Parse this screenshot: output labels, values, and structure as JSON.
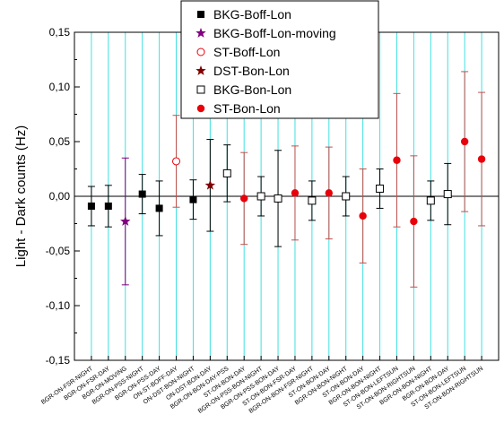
{
  "chart_data": {
    "type": "scatter",
    "title": "",
    "xlabel": "",
    "ylabel": "Light - Dark counts (Hz)",
    "ylim": [
      -0.15,
      0.15
    ],
    "yticks": [
      "-0,15",
      "-0,10",
      "-0,05",
      "0,00",
      "0,05",
      "0,10",
      "0,15"
    ],
    "ytick_values": [
      -0.15,
      -0.1,
      -0.05,
      0.0,
      0.05,
      0.1,
      0.15
    ],
    "grid": "vertical lines at each category (cyan)",
    "reference_line": 0.0,
    "legend_position": "top-center",
    "categories": [
      "BGR-ON-FSR-NIGHT",
      "BGR-ON-FSR-DAY",
      "BGR-ON-MOVING",
      "BGR-ON-PSS-NIGHT",
      "BGR-ON-PSS-DAY",
      "ON-ST-BOFF-DAY",
      "ON-DST-BON-NIGHT",
      "ON-DST-BON-DAY",
      "BGR-ON-BON-DAY-PSS",
      "ST-ON-BON-DAY",
      "BGR-ON-PSS-BON-NIGHT",
      "BGR-ON-PSS-BON-DAY",
      "ST-ON-BON-FSR-DAY",
      "BGR-ON-BON-FSR-NIGHT",
      "ST-ON-BON-DAY",
      "BGR-ON-BON-NIGHT",
      "ST-ON-BON-DAY",
      "BGR-ON-BON-NIGHT",
      "ST-ON-BON-LEFTSUN",
      "ST-ON-BON-RIGHTSUN",
      "BGR-ON-BON-NIGHT",
      "BGR-ON-BON-DAY",
      "ST-ON-BON-LEFTSUN",
      "ST-ON-BON-RIGHTSUN"
    ],
    "series": [
      {
        "name": "BKG-Boff-Lon",
        "marker": "filled-square",
        "color": "#000000",
        "err_color": "#000000",
        "points": [
          {
            "x": 0,
            "y": -0.009,
            "err": 0.018
          },
          {
            "x": 1,
            "y": -0.009,
            "err": 0.019
          },
          {
            "x": 3,
            "y": 0.002,
            "err": 0.018
          },
          {
            "x": 4,
            "y": -0.011,
            "err": 0.025
          },
          {
            "x": 6,
            "y": -0.003,
            "err": 0.018
          }
        ]
      },
      {
        "name": "BKG-Boff-Lon-moving",
        "marker": "filled-star",
        "color": "#800080",
        "err_color": "#800080",
        "points": [
          {
            "x": 2,
            "y": -0.023,
            "err": 0.058
          }
        ]
      },
      {
        "name": "ST-Boff-Lon",
        "marker": "open-circle",
        "color": "#e8000b",
        "err_color": "#c0504d",
        "points": [
          {
            "x": 5,
            "y": 0.032,
            "err": 0.042
          }
        ]
      },
      {
        "name": "DST-Bon-Lon",
        "marker": "filled-star",
        "color": "#800000",
        "err_color": "#000000",
        "points": [
          {
            "x": 7,
            "y": 0.01,
            "err": 0.042
          }
        ]
      },
      {
        "name": "BKG-Bon-Lon",
        "marker": "open-square",
        "color": "#000000",
        "err_color": "#000000",
        "points": [
          {
            "x": 8,
            "y": 0.021,
            "err": 0.026
          },
          {
            "x": 10,
            "y": 0.0,
            "err": 0.018
          },
          {
            "x": 11,
            "y": -0.002,
            "err": 0.044
          },
          {
            "x": 13,
            "y": -0.004,
            "err": 0.018
          },
          {
            "x": 15,
            "y": 0.0,
            "err": 0.018
          },
          {
            "x": 17,
            "y": 0.007,
            "err": 0.018
          },
          {
            "x": 20,
            "y": -0.004,
            "err": 0.018
          },
          {
            "x": 21,
            "y": 0.002,
            "err": 0.028
          }
        ]
      },
      {
        "name": "ST-Bon-Lon",
        "marker": "filled-circle",
        "color": "#e8000b",
        "err_color": "#c0504d",
        "points": [
          {
            "x": 9,
            "y": -0.002,
            "err": 0.042
          },
          {
            "x": 12,
            "y": 0.003,
            "err": 0.043
          },
          {
            "x": 14,
            "y": 0.003,
            "err": 0.042
          },
          {
            "x": 16,
            "y": -0.018,
            "err": 0.043
          },
          {
            "x": 18,
            "y": 0.033,
            "err": 0.061
          },
          {
            "x": 19,
            "y": -0.023,
            "err": 0.06
          },
          {
            "x": 22,
            "y": 0.05,
            "err": 0.064
          },
          {
            "x": 23,
            "y": 0.034,
            "err": 0.061
          }
        ]
      }
    ]
  },
  "colors": {
    "grid": "#40e0e0",
    "axis": "#000000"
  }
}
